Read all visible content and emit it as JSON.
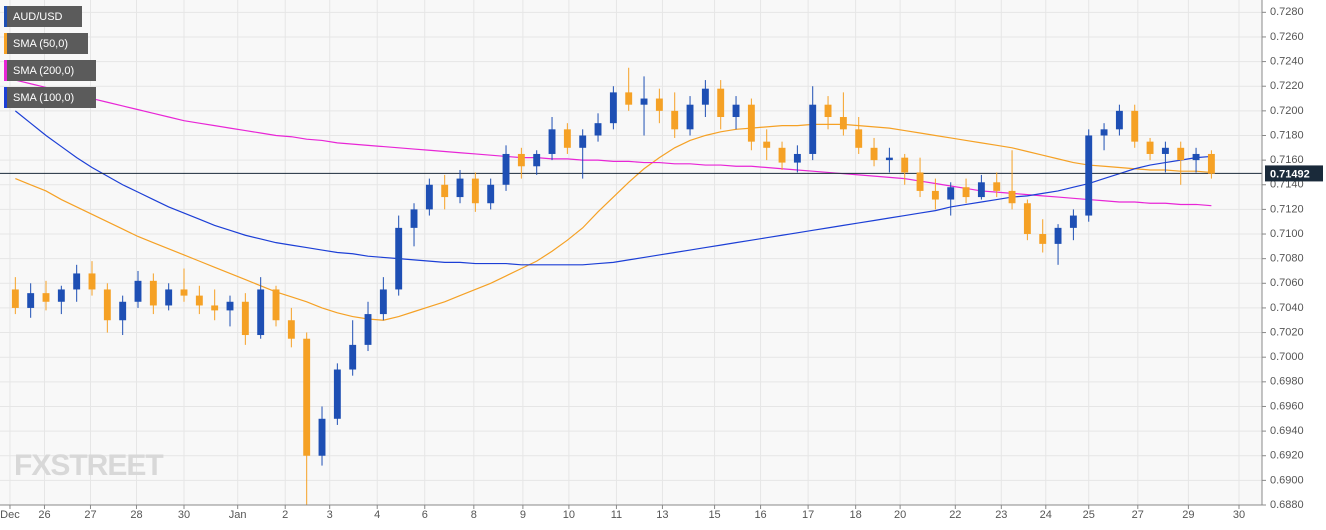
{
  "chart_data": {
    "type": "candlestick",
    "watermark": "FXSTREET",
    "ylim": [
      0.688,
      0.729
    ],
    "yticks": [
      {
        "value": 0.688,
        "label": "0.6880"
      },
      {
        "value": 0.69,
        "label": "0.6900"
      },
      {
        "value": 0.692,
        "label": "0.6920"
      },
      {
        "value": 0.694,
        "label": "0.6940"
      },
      {
        "value": 0.696,
        "label": "0.6960"
      },
      {
        "value": 0.698,
        "label": "0.6980"
      },
      {
        "value": 0.7,
        "label": "0.7000"
      },
      {
        "value": 0.702,
        "label": "0.7020"
      },
      {
        "value": 0.704,
        "label": "0.7040"
      },
      {
        "value": 0.706,
        "label": "0.7060"
      },
      {
        "value": 0.708,
        "label": "0.7080"
      },
      {
        "value": 0.71,
        "label": "0.7100"
      },
      {
        "value": 0.712,
        "label": "0.7120"
      },
      {
        "value": 0.714,
        "label": "0.7140"
      },
      {
        "value": 0.716,
        "label": "0.7160"
      },
      {
        "value": 0.718,
        "label": "0.7180"
      },
      {
        "value": 0.72,
        "label": "0.7200"
      },
      {
        "value": 0.722,
        "label": "0.7220"
      },
      {
        "value": 0.724,
        "label": "0.7240"
      },
      {
        "value": 0.726,
        "label": "0.7260"
      },
      {
        "value": 0.728,
        "label": "0.7280"
      }
    ],
    "xlim": [
      -1,
      81.3
    ],
    "xticks": [
      {
        "value": -0.35,
        "label": "Dec"
      },
      {
        "value": 1.9,
        "label": "26"
      },
      {
        "value": 4.9,
        "label": "27"
      },
      {
        "value": 7.9,
        "label": "28"
      },
      {
        "value": 11.0,
        "label": "30"
      },
      {
        "value": 14.5,
        "label": "Jan"
      },
      {
        "value": 17.6,
        "label": "2"
      },
      {
        "value": 20.5,
        "label": "3"
      },
      {
        "value": 23.6,
        "label": "4"
      },
      {
        "value": 26.7,
        "label": "6"
      },
      {
        "value": 29.9,
        "label": "8"
      },
      {
        "value": 33.1,
        "label": "9"
      },
      {
        "value": 36.1,
        "label": "10"
      },
      {
        "value": 39.2,
        "label": "11"
      },
      {
        "value": 42.2,
        "label": "13"
      },
      {
        "value": 45.6,
        "label": "15"
      },
      {
        "value": 48.6,
        "label": "16"
      },
      {
        "value": 51.7,
        "label": "17"
      },
      {
        "value": 54.8,
        "label": "18"
      },
      {
        "value": 57.7,
        "label": "20"
      },
      {
        "value": 61.3,
        "label": "22"
      },
      {
        "value": 64.3,
        "label": "23"
      },
      {
        "value": 67.2,
        "label": "24"
      },
      {
        "value": 70.0,
        "label": "25"
      },
      {
        "value": 73.2,
        "label": "27"
      },
      {
        "value": 76.5,
        "label": "29"
      },
      {
        "value": 79.8,
        "label": "30"
      }
    ],
    "grid": true,
    "last_price": 0.71492,
    "up_color": "#1e4fb4",
    "down_color": "#f5a125",
    "series": [
      {
        "name": "AUD/USD",
        "color": "#1e4fb4",
        "open": [
          0.7055,
          0.704,
          0.7052,
          0.7045,
          0.7055,
          0.7068,
          0.7055,
          0.703,
          0.7045,
          0.7062,
          0.7042,
          0.7055,
          0.705,
          0.7042,
          0.7038,
          0.7045,
          0.7018,
          0.7055,
          0.703,
          0.7015,
          0.692,
          0.695,
          0.699,
          0.701,
          0.7035,
          0.7055,
          0.7105,
          0.712,
          0.714,
          0.713,
          0.7145,
          0.7125,
          0.714,
          0.7165,
          0.7155,
          0.7165,
          0.7185,
          0.717,
          0.718,
          0.719,
          0.7215,
          0.7205,
          0.721,
          0.72,
          0.7185,
          0.7205,
          0.7218,
          0.7195,
          0.7205,
          0.7175,
          0.717,
          0.7158,
          0.7165,
          0.7205,
          0.7195,
          0.7185,
          0.717,
          0.716,
          0.7162,
          0.715,
          0.7135,
          0.7128,
          0.7138,
          0.713,
          0.7142,
          0.7135,
          0.7125,
          0.71,
          0.7092,
          0.7105,
          0.7115,
          0.718,
          0.7185,
          0.72,
          0.7175,
          0.7165,
          0.717,
          0.716,
          0.7165
        ],
        "high": [
          0.7065,
          0.706,
          0.7062,
          0.7058,
          0.7075,
          0.7078,
          0.706,
          0.705,
          0.707,
          0.7068,
          0.706,
          0.7072,
          0.7058,
          0.7055,
          0.705,
          0.7052,
          0.7065,
          0.7058,
          0.704,
          0.702,
          0.696,
          0.6995,
          0.703,
          0.7045,
          0.7065,
          0.7115,
          0.7125,
          0.7145,
          0.7148,
          0.7152,
          0.715,
          0.7145,
          0.7172,
          0.717,
          0.7168,
          0.7195,
          0.719,
          0.7185,
          0.7198,
          0.722,
          0.7235,
          0.7228,
          0.7218,
          0.7215,
          0.7212,
          0.7225,
          0.7225,
          0.7212,
          0.721,
          0.7185,
          0.7175,
          0.7172,
          0.722,
          0.7212,
          0.7215,
          0.7195,
          0.7178,
          0.717,
          0.7165,
          0.7162,
          0.7145,
          0.7142,
          0.7145,
          0.7148,
          0.715,
          0.7168,
          0.7128,
          0.7112,
          0.7108,
          0.712,
          0.7185,
          0.719,
          0.7205,
          0.7205,
          0.7178,
          0.7175,
          0.7175,
          0.717,
          0.7168
        ],
        "low": [
          0.7035,
          0.7032,
          0.7038,
          0.7035,
          0.7045,
          0.705,
          0.702,
          0.7018,
          0.704,
          0.7035,
          0.7038,
          0.7045,
          0.7035,
          0.703,
          0.7025,
          0.701,
          0.7015,
          0.7025,
          0.7008,
          0.688,
          0.6912,
          0.6945,
          0.6985,
          0.7005,
          0.703,
          0.705,
          0.709,
          0.7115,
          0.712,
          0.7125,
          0.7118,
          0.712,
          0.7135,
          0.7145,
          0.7148,
          0.716,
          0.7165,
          0.7145,
          0.7175,
          0.7185,
          0.72,
          0.718,
          0.719,
          0.7178,
          0.718,
          0.7195,
          0.7185,
          0.7185,
          0.7168,
          0.716,
          0.7152,
          0.715,
          0.716,
          0.7185,
          0.718,
          0.7165,
          0.7155,
          0.715,
          0.714,
          0.713,
          0.712,
          0.7115,
          0.7125,
          0.7128,
          0.713,
          0.712,
          0.7095,
          0.7085,
          0.7075,
          0.7095,
          0.711,
          0.7168,
          0.718,
          0.717,
          0.716,
          0.715,
          0.714,
          0.715,
          0.7145
        ],
        "close": [
          0.704,
          0.7052,
          0.7045,
          0.7055,
          0.7068,
          0.7055,
          0.703,
          0.7045,
          0.7062,
          0.7042,
          0.7055,
          0.705,
          0.7042,
          0.7038,
          0.7045,
          0.7018,
          0.7055,
          0.703,
          0.7015,
          0.692,
          0.695,
          0.699,
          0.701,
          0.7035,
          0.7055,
          0.7105,
          0.712,
          0.714,
          0.713,
          0.7145,
          0.7125,
          0.714,
          0.7165,
          0.7155,
          0.7165,
          0.7185,
          0.717,
          0.718,
          0.719,
          0.7215,
          0.7205,
          0.721,
          0.72,
          0.7185,
          0.7205,
          0.7218,
          0.7195,
          0.7205,
          0.7175,
          0.717,
          0.7158,
          0.7165,
          0.7205,
          0.7195,
          0.7185,
          0.717,
          0.716,
          0.7162,
          0.715,
          0.7135,
          0.7128,
          0.7138,
          0.713,
          0.7142,
          0.7135,
          0.7125,
          0.71,
          0.7092,
          0.7105,
          0.7115,
          0.718,
          0.7185,
          0.72,
          0.7175,
          0.7165,
          0.717,
          0.716,
          0.7165,
          0.7149
        ]
      },
      {
        "name": "SMA (50,0)",
        "color": "#f5a125",
        "values": [
          0.7145,
          0.714,
          0.7135,
          0.7128,
          0.7122,
          0.7116,
          0.711,
          0.7104,
          0.7098,
          0.7093,
          0.7088,
          0.7083,
          0.7078,
          0.7073,
          0.7068,
          0.7063,
          0.7058,
          0.7053,
          0.7049,
          0.7045,
          0.704,
          0.7036,
          0.7033,
          0.7031,
          0.703,
          0.7033,
          0.7037,
          0.7041,
          0.7045,
          0.705,
          0.7055,
          0.706,
          0.7066,
          0.7072,
          0.7078,
          0.7086,
          0.7095,
          0.7105,
          0.7118,
          0.713,
          0.7142,
          0.7153,
          0.7162,
          0.717,
          0.7176,
          0.718,
          0.7183,
          0.7185,
          0.7186,
          0.7187,
          0.7188,
          0.7188,
          0.7189,
          0.7189,
          0.7189,
          0.7188,
          0.7187,
          0.7186,
          0.7184,
          0.7182,
          0.718,
          0.7178,
          0.7176,
          0.7174,
          0.7172,
          0.717,
          0.7167,
          0.7164,
          0.7161,
          0.7158,
          0.7156,
          0.7155,
          0.7154,
          0.7153,
          0.7152,
          0.7152,
          0.7151,
          0.7151,
          0.715
        ]
      },
      {
        "name": "SMA (200,0)",
        "color": "#e826d6",
        "values": [
          0.7225,
          0.7222,
          0.7219,
          0.7216,
          0.7213,
          0.721,
          0.7207,
          0.7204,
          0.7201,
          0.7198,
          0.7195,
          0.7192,
          0.719,
          0.7188,
          0.7186,
          0.7184,
          0.7182,
          0.718,
          0.7179,
          0.7177,
          0.7176,
          0.7174,
          0.7173,
          0.7172,
          0.7171,
          0.717,
          0.7169,
          0.7168,
          0.7167,
          0.7166,
          0.7165,
          0.7164,
          0.7163,
          0.7162,
          0.7162,
          0.7161,
          0.7161,
          0.716,
          0.716,
          0.7159,
          0.7159,
          0.7158,
          0.7158,
          0.7157,
          0.7157,
          0.7156,
          0.7156,
          0.7155,
          0.7155,
          0.7154,
          0.7153,
          0.7152,
          0.7151,
          0.715,
          0.7149,
          0.7148,
          0.7147,
          0.7146,
          0.7145,
          0.7143,
          0.7141,
          0.7139,
          0.7137,
          0.7135,
          0.7134,
          0.7133,
          0.7132,
          0.7131,
          0.713,
          0.7129,
          0.7128,
          0.7127,
          0.7126,
          0.7126,
          0.7125,
          0.7125,
          0.7124,
          0.7124,
          0.7123
        ]
      },
      {
        "name": "SMA (100,0)",
        "color": "#1c3fd6",
        "values": [
          0.72,
          0.719,
          0.718,
          0.7171,
          0.7162,
          0.7154,
          0.7147,
          0.714,
          0.7134,
          0.7128,
          0.7122,
          0.7117,
          0.7112,
          0.7107,
          0.7103,
          0.7099,
          0.7096,
          0.7093,
          0.7091,
          0.7089,
          0.7087,
          0.7085,
          0.7084,
          0.7082,
          0.7081,
          0.708,
          0.7079,
          0.7078,
          0.7077,
          0.7077,
          0.7076,
          0.7076,
          0.7076,
          0.7075,
          0.7075,
          0.7075,
          0.7075,
          0.7075,
          0.7076,
          0.7077,
          0.7079,
          0.7081,
          0.7083,
          0.7085,
          0.7087,
          0.7089,
          0.7091,
          0.7093,
          0.7095,
          0.7097,
          0.7099,
          0.7101,
          0.7103,
          0.7105,
          0.7107,
          0.7109,
          0.7111,
          0.7113,
          0.7115,
          0.7117,
          0.7119,
          0.7122,
          0.7124,
          0.7126,
          0.7128,
          0.713,
          0.7131,
          0.7133,
          0.7135,
          0.7138,
          0.7141,
          0.7145,
          0.7149,
          0.7153,
          0.7156,
          0.7158,
          0.716,
          0.7162,
          0.7163
        ]
      }
    ]
  }
}
